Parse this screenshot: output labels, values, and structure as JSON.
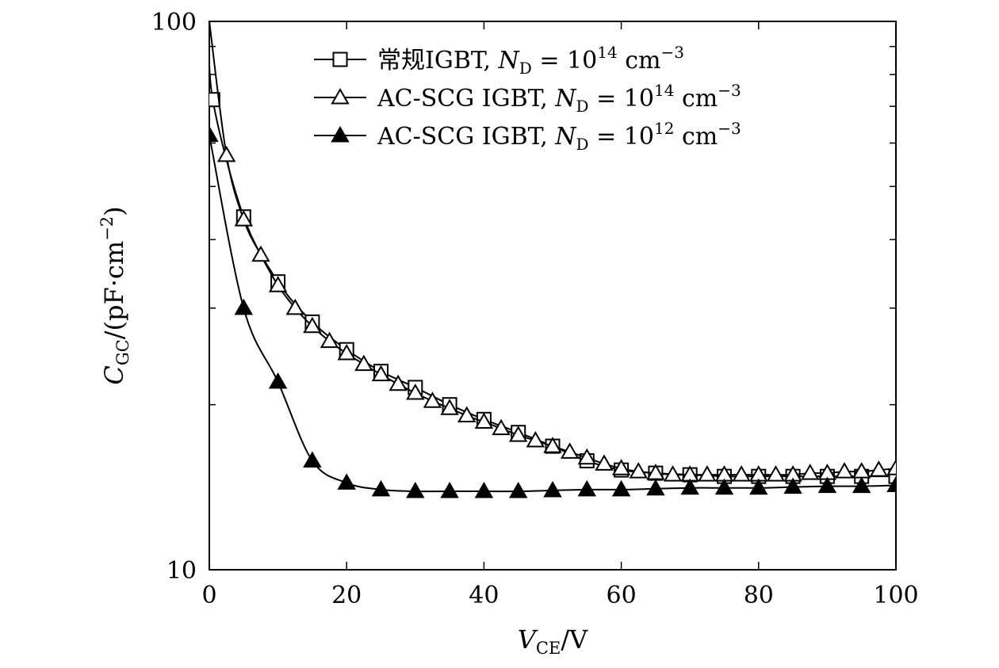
{
  "chart_data": {
    "type": "line",
    "y_scale": "log",
    "xlim": [
      0,
      100
    ],
    "ylim": [
      10,
      100
    ],
    "x_ticks": [
      "0",
      "20",
      "40",
      "60",
      "80",
      "100"
    ],
    "y_ticks": [
      "10",
      "100"
    ],
    "xlabel": "V_CE/V",
    "ylabel": "C_GC/(pF·cm⁻²)",
    "grid": false,
    "legend_position": "top-right",
    "series": [
      {
        "name": "常规IGBT, N_D = 10^14 cm^-3",
        "marker": "open-square",
        "x": [
          0.5,
          5,
          10,
          15,
          20,
          25,
          30,
          35,
          40,
          45,
          50,
          55,
          60,
          65,
          70,
          75,
          80,
          85,
          90,
          95,
          100
        ],
        "y": [
          72,
          44,
          33.5,
          28.3,
          25.2,
          23.0,
          21.5,
          20.0,
          18.8,
          17.8,
          16.8,
          15.8,
          15.2,
          15.0,
          14.9,
          14.8,
          14.8,
          14.8,
          14.8,
          14.8,
          14.8
        ]
      },
      {
        "name": "AC-SCG IGBT, N_D = 10^14 cm^-3",
        "marker": "open-triangle",
        "x": [
          2.5,
          5,
          7.5,
          10,
          12.5,
          15,
          17.5,
          20,
          22.5,
          25,
          27.5,
          30,
          32.5,
          35,
          37.5,
          40,
          42.5,
          45,
          47.5,
          50,
          52.5,
          55,
          57.5,
          60,
          62.5,
          65,
          67.5,
          70,
          72.5,
          75,
          77.5,
          80,
          82.5,
          85,
          87.5,
          90,
          92.5,
          95,
          97.5,
          100
        ],
        "y": [
          57,
          43.5,
          37.5,
          33,
          30,
          27.8,
          26.1,
          24.8,
          23.7,
          22.7,
          21.8,
          21.0,
          20.3,
          19.7,
          19.1,
          18.6,
          18.1,
          17.6,
          17.2,
          16.8,
          16.4,
          16.0,
          15.6,
          15.3,
          15.1,
          15.0,
          14.9,
          14.9,
          14.9,
          14.9,
          14.9,
          14.9,
          14.9,
          14.9,
          15.0,
          15.0,
          15.1,
          15.1,
          15.2,
          15.3
        ]
      },
      {
        "name": "AC-SCG IGBT, N_D = 10^12 cm^-3",
        "marker": "filled-triangle",
        "x": [
          0,
          5,
          10,
          15,
          20,
          25,
          30,
          35,
          40,
          45,
          50,
          55,
          60,
          65,
          70,
          75,
          80,
          85,
          90,
          95,
          100
        ],
        "y": [
          62,
          30,
          22,
          15.8,
          14.4,
          14.0,
          13.9,
          13.9,
          13.9,
          13.9,
          13.95,
          14.0,
          14.0,
          14.05,
          14.1,
          14.1,
          14.1,
          14.15,
          14.2,
          14.2,
          14.25
        ]
      }
    ],
    "legend": [
      {
        "prefix": "常规IGBT, ",
        "nsymbol": "N",
        "nsub": "D",
        "equals": " = 10",
        "exp": "14",
        "unit": " cm",
        "unit_exp": "−3"
      },
      {
        "prefix": "AC-SCG IGBT, ",
        "nsymbol": "N",
        "nsub": "D",
        "equals": " = 10",
        "exp": "14",
        "unit": " cm",
        "unit_exp": "−3"
      },
      {
        "prefix": "AC-SCG IGBT, ",
        "nsymbol": "N",
        "nsub": "D",
        "equals": " = 10",
        "exp": "12",
        "unit": " cm",
        "unit_exp": "−3"
      }
    ],
    "axis_labels": {
      "x": {
        "symbol": "V",
        "sub": "CE",
        "rest": "/V"
      },
      "y": {
        "symbol": "C",
        "sub": "GC",
        "rest": "/(pF·cm",
        "exp": "−2",
        "close": ")"
      }
    }
  }
}
